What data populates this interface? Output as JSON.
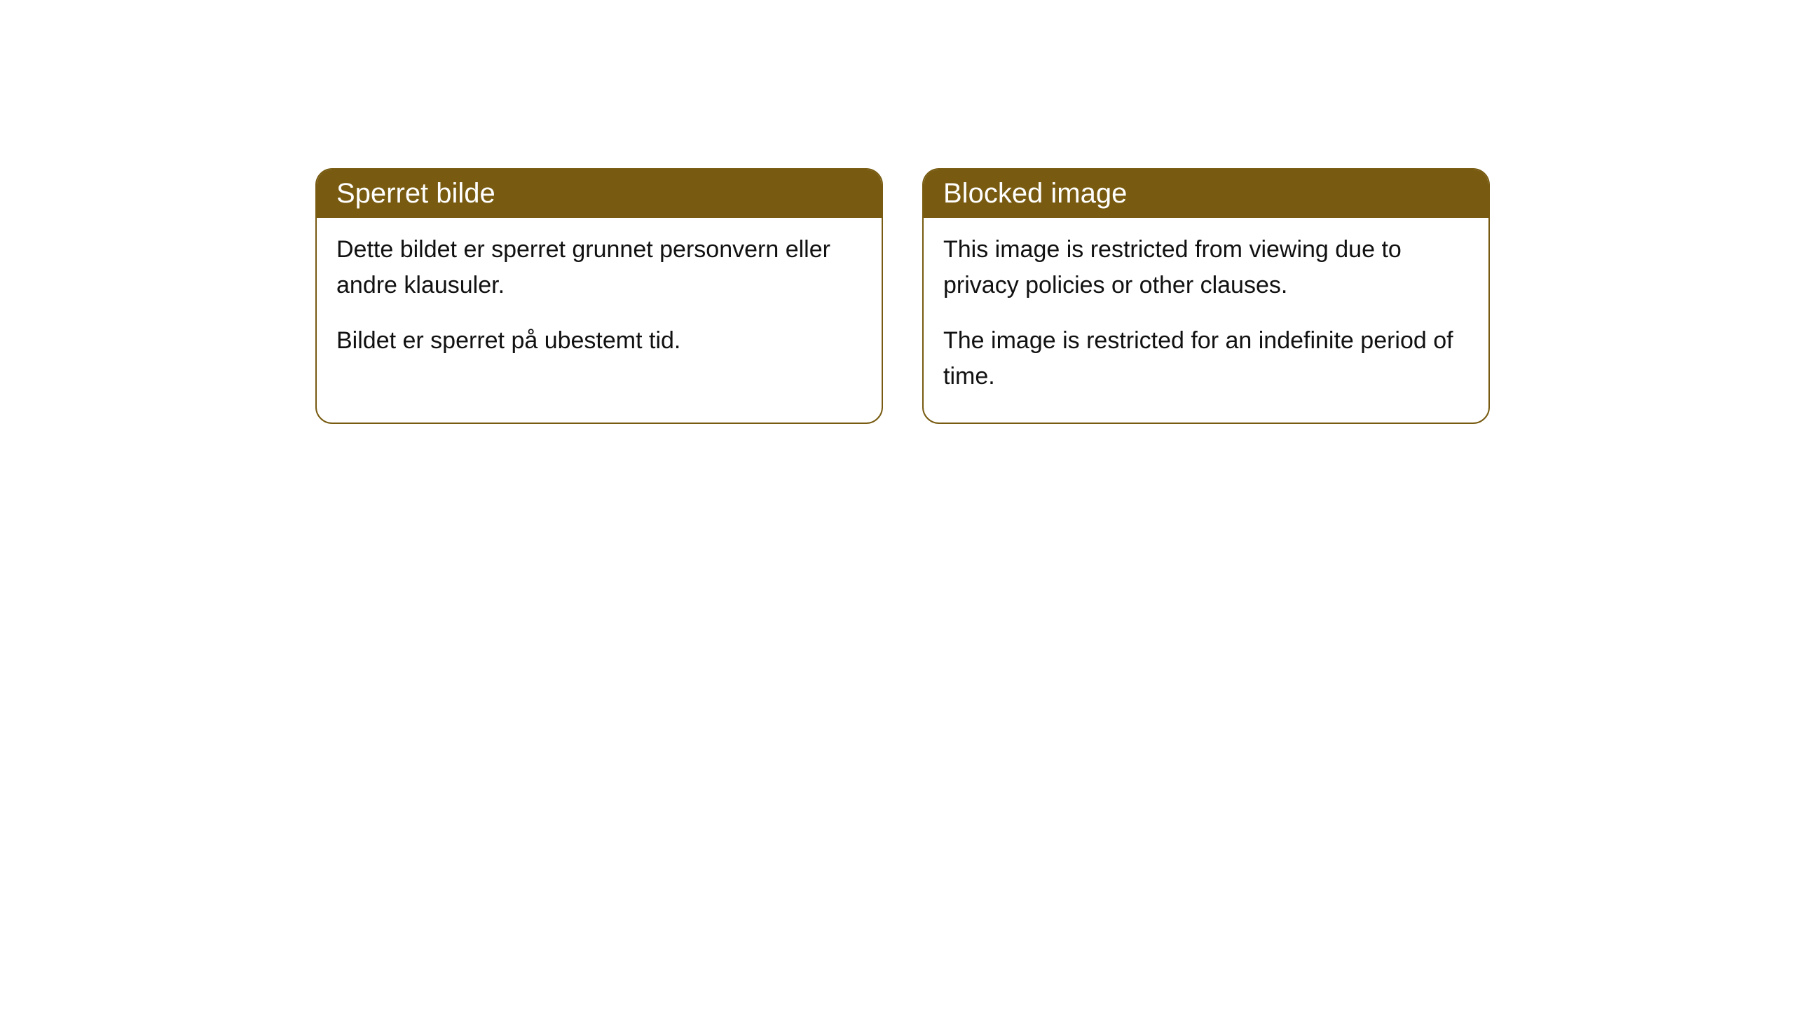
{
  "cards": [
    {
      "title": "Sperret bilde",
      "paragraph1": "Dette bildet er sperret grunnet personvern eller andre klausuler.",
      "paragraph2": "Bildet er sperret på ubestemt tid."
    },
    {
      "title": "Blocked image",
      "paragraph1": "This image is restricted from viewing due to privacy policies or other clauses.",
      "paragraph2": "The image is restricted for an indefinite period of time."
    }
  ],
  "style": {
    "header_bg_color": "#785b11",
    "header_text_color": "#ffffff",
    "border_color": "#785b11",
    "body_bg_color": "#ffffff",
    "body_text_color": "#111111",
    "border_radius": 24,
    "header_fontsize": 40,
    "body_fontsize": 34
  }
}
